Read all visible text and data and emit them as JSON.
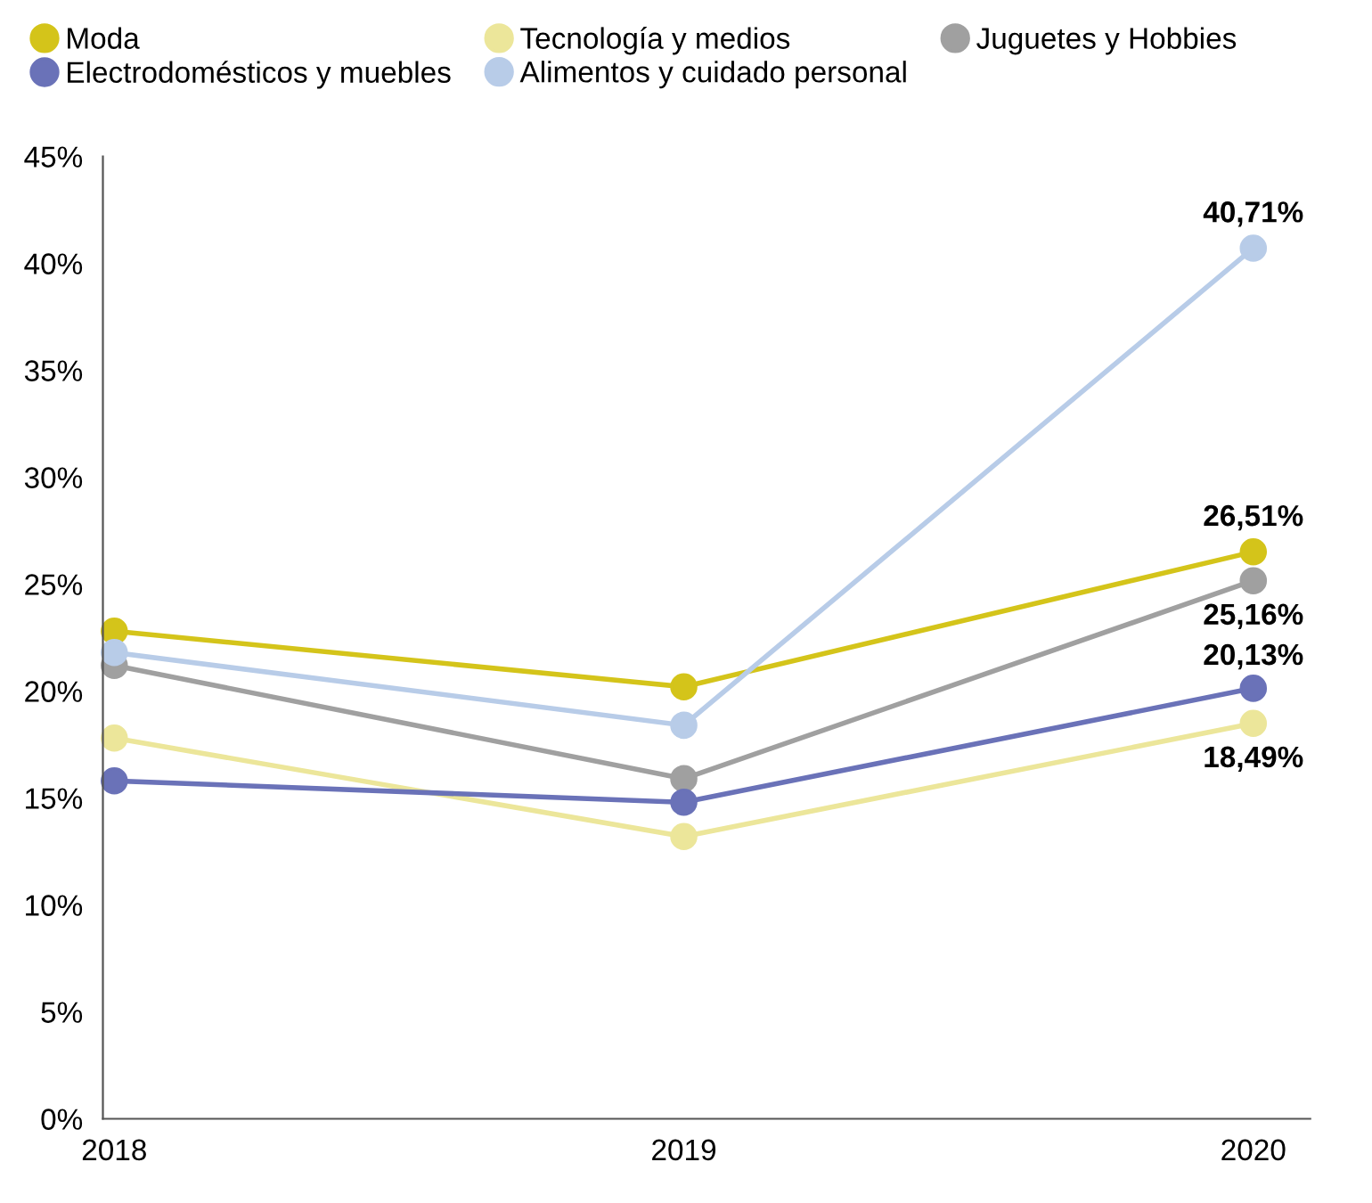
{
  "chart_data": {
    "type": "line",
    "categories": [
      "2018",
      "2019",
      "2020"
    ],
    "ylim": [
      0,
      45
    ],
    "yticks": [
      {
        "value": 0,
        "label": "0%"
      },
      {
        "value": 5,
        "label": "5%"
      },
      {
        "value": 10,
        "label": "10%"
      },
      {
        "value": 15,
        "label": "15%"
      },
      {
        "value": 20,
        "label": "20%"
      },
      {
        "value": 25,
        "label": "25%"
      },
      {
        "value": 30,
        "label": "30%"
      },
      {
        "value": 35,
        "label": "35%"
      },
      {
        "value": 40,
        "label": "40%"
      },
      {
        "value": 45,
        "label": "45%"
      }
    ],
    "grid": false,
    "legend": "top",
    "marker": "circle",
    "line_style": "solid",
    "series": [
      {
        "name": "Moda",
        "color": "#d4c41a",
        "values": [
          22.8,
          20.2,
          26.51
        ],
        "value_labels": [
          null,
          null,
          "26,51%"
        ]
      },
      {
        "name": "Tecnología y medios",
        "color": "#ece69a",
        "values": [
          17.8,
          13.2,
          18.49
        ],
        "value_labels": [
          null,
          null,
          "18,49%"
        ]
      },
      {
        "name": "Juguetes y Hobbies",
        "color": "#a0a0a0",
        "values": [
          21.2,
          15.9,
          25.16
        ],
        "value_labels": [
          null,
          null,
          "25,16%"
        ]
      },
      {
        "name": "Electrodomésticos y muebles",
        "color": "#6a72b8",
        "values": [
          15.8,
          14.8,
          20.13
        ],
        "value_labels": [
          null,
          null,
          "20,13%"
        ]
      },
      {
        "name": "Alimentos y cuidado personal",
        "color": "#b8cce8",
        "values": [
          21.8,
          18.4,
          40.71
        ],
        "value_labels": [
          null,
          null,
          "40,71%"
        ]
      }
    ]
  }
}
